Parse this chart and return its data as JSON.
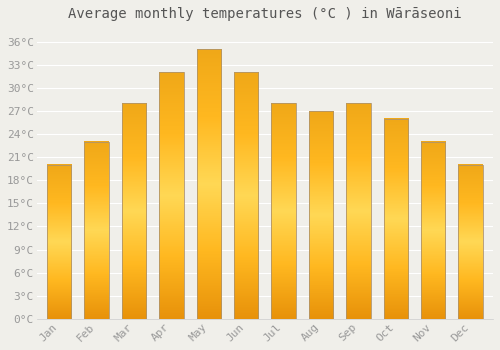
{
  "months": [
    "Jan",
    "Feb",
    "Mar",
    "Apr",
    "May",
    "Jun",
    "Jul",
    "Aug",
    "Sep",
    "Oct",
    "Nov",
    "Dec"
  ],
  "temperatures": [
    20,
    23,
    28,
    32,
    35,
    32,
    28,
    27,
    28,
    26,
    23,
    20
  ],
  "title": "Average monthly temperatures (°C ) in Wārāseoni",
  "ylim": [
    0,
    38
  ],
  "yticks": [
    0,
    3,
    6,
    9,
    12,
    15,
    18,
    21,
    24,
    27,
    30,
    33,
    36
  ],
  "ytick_labels": [
    "0°C",
    "3°C",
    "6°C",
    "9°C",
    "12°C",
    "15°C",
    "18°C",
    "21°C",
    "24°C",
    "27°C",
    "30°C",
    "33°C",
    "36°C"
  ],
  "background_color": "#F0EFEA",
  "grid_color": "#FFFFFF",
  "bar_edge_color": "#B8A060",
  "bar_color_center": "#FFD050",
  "bar_color_edge_grad": "#F0A020",
  "title_fontsize": 10,
  "tick_fontsize": 8,
  "tick_color": "#999999",
  "bar_width": 0.65
}
